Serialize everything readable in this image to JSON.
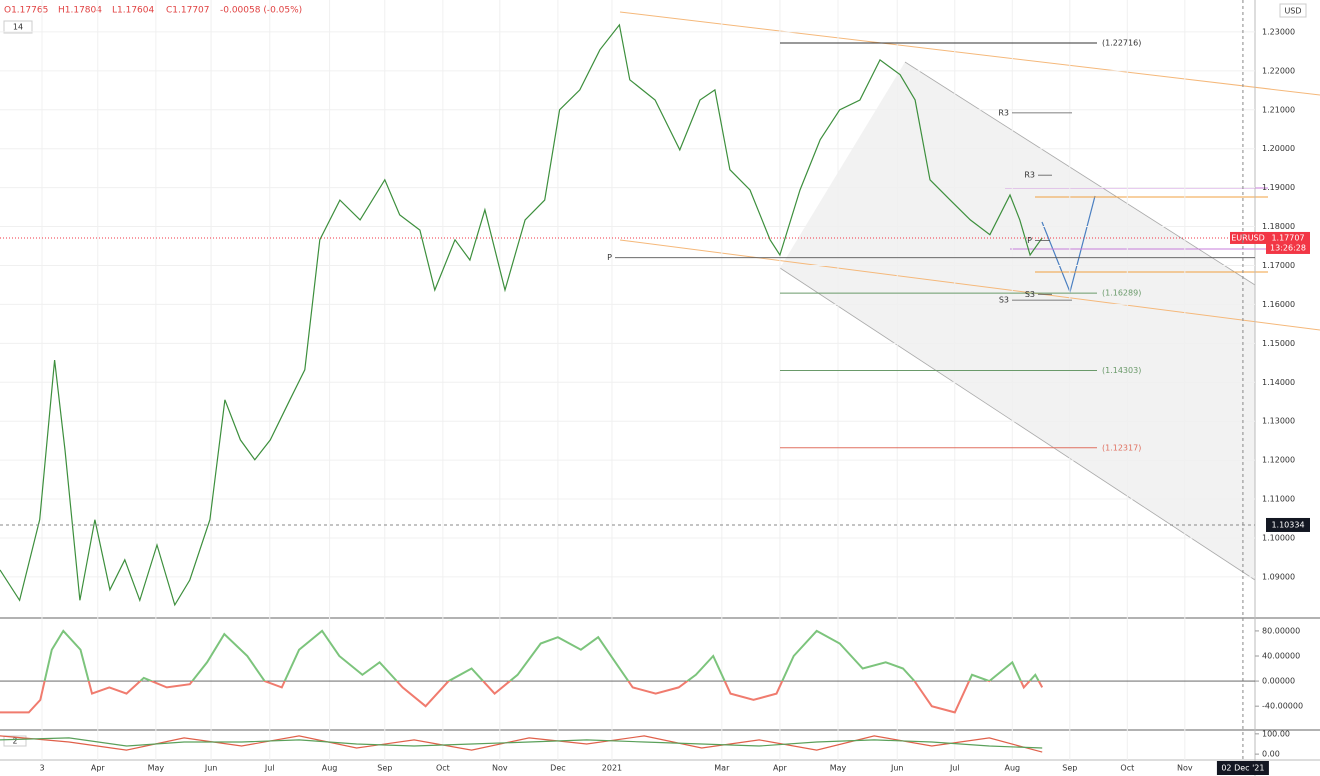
{
  "header": {
    "ohlc": [
      "O1.17765",
      "H1.17804",
      "L1.17604",
      "C1.17707",
      "-0.00058 (-0.05%)"
    ],
    "badge": "14",
    "currency": "USD"
  },
  "chart_data": [
    {
      "type": "line",
      "x": [
        -0.7,
        -0.36,
        -0.01,
        0.25,
        0.43,
        0.69,
        0.95,
        1.21,
        1.47,
        1.73,
        2.03,
        2.34,
        2.6,
        2.95,
        3.21,
        3.48,
        3.73,
        4.0,
        4.34,
        4.6,
        4.86,
        5.21,
        5.56,
        5.99,
        6.25,
        6.6,
        6.86,
        7.21,
        7.47,
        7.73,
        8.08,
        8.43,
        8.77,
        9.03,
        9.38,
        9.73,
        10.07,
        10.25,
        10.69,
        11.12,
        11.47,
        11.73,
        11.99,
        12.34,
        12.69,
        12.86,
        13.21,
        13.56,
        13.9,
        14.25,
        14.6,
        14.95,
        15.21,
        15.47,
        15.82,
        16.17,
        16.51,
        16.86,
        17.03,
        17.21,
        17.42
      ],
      "series": [
        {
          "name": "EURUSD",
          "color": "#3d8f3d",
          "values": [
            1.0918,
            1.084,
            1.1047,
            1.1457,
            1.1226,
            1.084,
            1.1047,
            1.0867,
            1.0944,
            1.084,
            1.0982,
            1.0828,
            1.0892,
            1.1047,
            1.1355,
            1.1252,
            1.1201,
            1.1252,
            1.1355,
            1.1432,
            1.1766,
            1.1868,
            1.1817,
            1.192,
            1.183,
            1.1791,
            1.1637,
            1.1766,
            1.1714,
            1.1843,
            1.1637,
            1.1817,
            1.1868,
            1.21,
            1.2151,
            1.2254,
            1.2318,
            1.2177,
            1.2125,
            1.1997,
            1.2125,
            1.2151,
            1.1946,
            1.1894,
            1.1766,
            1.1727,
            1.1894,
            1.2023,
            1.21,
            1.2125,
            1.2228,
            1.219,
            1.2125,
            1.192,
            1.1868,
            1.1817,
            1.1779,
            1.1881,
            1.1817,
            1.1727,
            1.1771
          ]
        }
      ],
      "xlim": [
        -0.7,
        21.12
      ],
      "ylim": [
        1.0797,
        1.2382
      ],
      "xticks": [
        {
          "value": 0.03,
          "label": "3"
        },
        {
          "value": 1,
          "label": "Apr"
        },
        {
          "value": 2.01,
          "label": "May"
        },
        {
          "value": 2.97,
          "label": "Jun"
        },
        {
          "value": 3.99,
          "label": "Jul"
        },
        {
          "value": 5.03,
          "label": "Aug"
        },
        {
          "value": 5.99,
          "label": "Sep"
        },
        {
          "value": 7.0,
          "label": "Oct"
        },
        {
          "value": 7.99,
          "label": "Nov"
        },
        {
          "value": 9.0,
          "label": "Dec"
        },
        {
          "value": 9.94,
          "label": "2021"
        },
        {
          "value": 11.85,
          "label": "Mar"
        },
        {
          "value": 12.86,
          "label": "Apr"
        },
        {
          "value": 13.87,
          "label": "May"
        },
        {
          "value": 14.9,
          "label": "Jun"
        },
        {
          "value": 15.9,
          "label": "Jul"
        },
        {
          "value": 16.9,
          "label": "Aug"
        },
        {
          "value": 17.9,
          "label": "Sep"
        },
        {
          "value": 18.9,
          "label": "Oct"
        },
        {
          "value": 19.9,
          "label": "Nov"
        }
      ],
      "yticks": [
        {
          "value": 1.09,
          "label": "1.09000"
        },
        {
          "value": 1.1,
          "label": "1.10000"
        },
        {
          "value": 1.11,
          "label": "1.11000"
        },
        {
          "value": 1.12,
          "label": "1.12000"
        },
        {
          "value": 1.13,
          "label": "1.13000"
        },
        {
          "value": 1.14,
          "label": "1.14000"
        },
        {
          "value": 1.15,
          "label": "1.15000"
        },
        {
          "value": 1.16,
          "label": "1.16000"
        },
        {
          "value": 1.17,
          "label": "1.17000"
        },
        {
          "value": 1.18,
          "label": "1.18000"
        },
        {
          "value": 1.19,
          "label": "1.19000"
        },
        {
          "value": 1.2,
          "label": "1.20000"
        },
        {
          "value": 1.21,
          "label": "1.21000"
        },
        {
          "value": 1.22,
          "label": "1.22000"
        },
        {
          "value": 1.23,
          "label": "1.23000"
        }
      ],
      "grid": true,
      "levels": [
        {
          "value": 1.22716,
          "label": "(1.22716)",
          "color": "#333333"
        },
        {
          "value": 1.16289,
          "label": "(1.16289)",
          "color": "#6a9a6a"
        },
        {
          "value": 1.14303,
          "label": "(1.14303)",
          "color": "#6a9a6a"
        },
        {
          "value": 1.12317,
          "label": "(1.12317)",
          "color": "#e07060"
        }
      ],
      "pivots": [
        {
          "label": "R3",
          "value": 1.2092
        },
        {
          "label": "R3",
          "value": 1.1932
        },
        {
          "label": "P",
          "value": 1.172
        },
        {
          "label": "P",
          "value": 1.1764
        },
        {
          "label": "S3",
          "value": 1.1626
        },
        {
          "label": "S3",
          "value": 1.1611
        }
      ],
      "last_price": {
        "symbol": "EURUSD",
        "value": 1.17707,
        "label": "1.17707",
        "countdown": "13:26:28",
        "color": "#f23645"
      },
      "crosshair": {
        "value": 1.10334,
        "label": "1.10334",
        "x": 20.91,
        "date": "02 Dec '21"
      }
    },
    {
      "type": "line",
      "x": [
        -0.7,
        -0.2,
        0.0,
        0.2,
        0.4,
        0.7,
        0.9,
        1.2,
        1.5,
        1.8,
        2.2,
        2.6,
        2.9,
        3.2,
        3.6,
        3.9,
        4.2,
        4.5,
        4.9,
        5.2,
        5.6,
        5.9,
        6.3,
        6.7,
        7.1,
        7.5,
        7.9,
        8.3,
        8.7,
        9.0,
        9.4,
        9.7,
        10.0,
        10.3,
        10.7,
        11.1,
        11.4,
        11.7,
        12.0,
        12.4,
        12.8,
        13.1,
        13.5,
        13.9,
        14.3,
        14.7,
        15.0,
        15.2,
        15.5,
        15.9,
        16.2,
        16.5,
        16.9,
        17.1,
        17.3,
        17.42
      ],
      "series": [
        {
          "pos_color": "#7cc47c",
          "neg_color": "#f07b6e",
          "values": [
            -50,
            -50,
            -30,
            50,
            80,
            50,
            -20,
            -10,
            -20,
            5,
            -10,
            -5,
            30,
            75,
            40,
            0,
            -10,
            50,
            80,
            40,
            10,
            30,
            -10,
            -40,
            0,
            20,
            -20,
            10,
            60,
            70,
            50,
            70,
            30,
            -10,
            -20,
            -10,
            10,
            40,
            -20,
            -30,
            -20,
            40,
            80,
            60,
            20,
            30,
            20,
            0,
            -40,
            -50,
            10,
            0,
            30,
            -10,
            10,
            -10
          ]
        }
      ],
      "ylim": [
        -78,
        99
      ],
      "yticks": [
        {
          "value": 80,
          "label": "80.00000"
        },
        {
          "value": 40,
          "label": "40.00000"
        },
        {
          "value": 0,
          "label": "0.00000"
        },
        {
          "value": -40,
          "label": "-40.00000"
        }
      ]
    },
    {
      "type": "line",
      "badge": "2",
      "x": [
        -0.7,
        0.5,
        1.5,
        2.5,
        3.5,
        4.5,
        5.5,
        6.5,
        7.5,
        8.5,
        9.5,
        10.5,
        11.5,
        12.5,
        13.5,
        14.5,
        15.5,
        16.5,
        17.42
      ],
      "series": [
        {
          "color": "#e0604a",
          "values": [
            90,
            60,
            20,
            80,
            40,
            90,
            30,
            70,
            20,
            80,
            50,
            90,
            30,
            70,
            20,
            90,
            40,
            80,
            10
          ]
        },
        {
          "color": "#5aa05a",
          "values": [
            70,
            80,
            40,
            60,
            60,
            70,
            50,
            40,
            50,
            60,
            70,
            60,
            50,
            40,
            60,
            70,
            60,
            40,
            30
          ]
        }
      ],
      "ylim": [
        -29,
        114
      ],
      "yticks": [
        {
          "value": 100,
          "label": "100.00"
        },
        {
          "value": 0,
          "label": "0.00"
        }
      ]
    }
  ]
}
